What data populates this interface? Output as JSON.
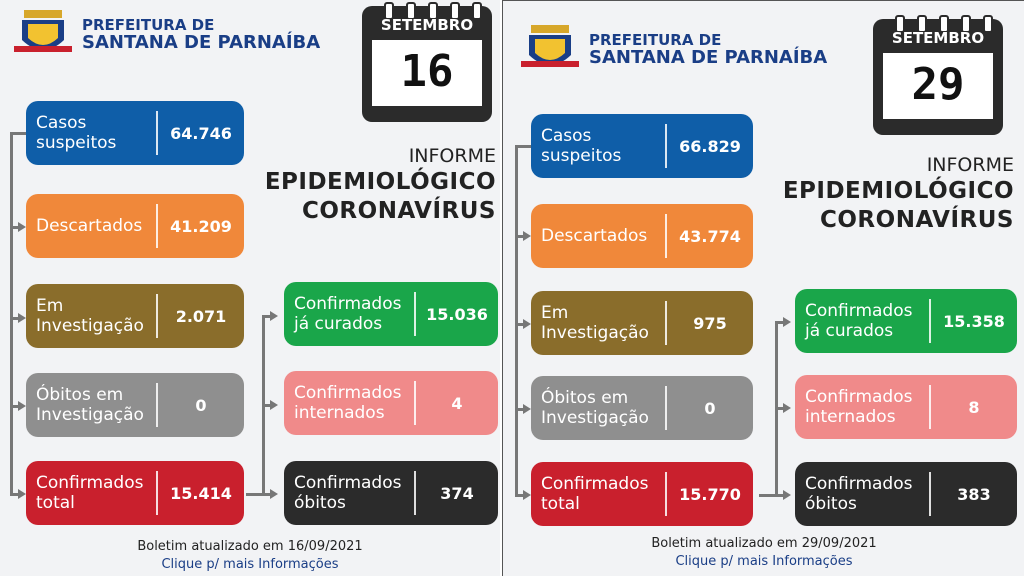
{
  "colors": {
    "suspeitos": "#0f5ea8",
    "descartados": "#f0883a",
    "investigacao": "#8a6d2b",
    "obitos_investigacao": "#8f8f8f",
    "confirmados_total": "#c9202d",
    "curados": "#1aa64a",
    "internados": "#f08a8a",
    "obitos": "#2b2b2b",
    "brand_blue": "#1a3e86"
  },
  "left": {
    "pref_line1": "PREFEITURA DE",
    "pref_line2": "SANTANA DE PARNAÍBA",
    "month": "SETEMBRO",
    "day": "16",
    "informe_l1": "INFORME",
    "informe_l2": "EPIDEMIOLÓGICO",
    "informe_l3": "CORONAVÍRUS",
    "casos_label1": "Casos",
    "casos_label2": "suspeitos",
    "casos_value": "64.746",
    "descartados_label": "Descartados",
    "descartados_value": "41.209",
    "investigacao_label1": "Em",
    "investigacao_label2": "Investigação",
    "investigacao_value": "2.071",
    "obitos_inv_label1": "Óbitos em",
    "obitos_inv_label2": "Investigação",
    "obitos_inv_value": "0",
    "total_label1": "Confirmados",
    "total_label2": "total",
    "total_value": "15.414",
    "curados_label1": "Confirmados",
    "curados_label2": "já curados",
    "curados_value": "15.036",
    "internados_label1": "Confirmados",
    "internados_label2": "internados",
    "internados_value": "4",
    "obitos_label1": "Confirmados",
    "obitos_label2": "óbitos",
    "obitos_value": "374",
    "footer1": "Boletim atualizado em 16/09/2021",
    "footer2": "Clique p/ mais Informações"
  },
  "right": {
    "pref_line1": "PREFEITURA DE",
    "pref_line2": "SANTANA DE PARNAÍBA",
    "month": "SETEMBRO",
    "day": "29",
    "informe_l1": "INFORME",
    "informe_l2": "EPIDEMIOLÓGICO",
    "informe_l3": "CORONAVÍRUS",
    "casos_label1": "Casos",
    "casos_label2": "suspeitos",
    "casos_value": "66.829",
    "descartados_label": "Descartados",
    "descartados_value": "43.774",
    "investigacao_label1": "Em",
    "investigacao_label2": "Investigação",
    "investigacao_value": "975",
    "obitos_inv_label1": "Óbitos em",
    "obitos_inv_label2": "Investigação",
    "obitos_inv_value": "0",
    "total_label1": "Confirmados",
    "total_label2": "total",
    "total_value": "15.770",
    "curados_label1": "Confirmados",
    "curados_label2": "já curados",
    "curados_value": "15.358",
    "internados_label1": "Confirmados",
    "internados_label2": "internados",
    "internados_value": "8",
    "obitos_label1": "Confirmados",
    "obitos_label2": "óbitos",
    "obitos_value": "383",
    "footer1": "Boletim atualizado em 29/09/2021",
    "footer2": "Clique p/ mais Informações"
  }
}
